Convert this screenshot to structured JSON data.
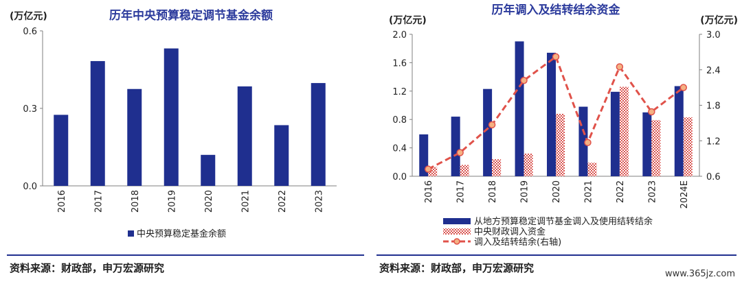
{
  "colors": {
    "navy": "#1F2F8F",
    "title": "#2B3A9C",
    "grid_axis": "#7F7F7F",
    "red_line": "#E0524A",
    "marker_fill": "#F4B183",
    "pattern_red": "#D9534F"
  },
  "left": {
    "title": "历年中央预算稳定调节基金余额",
    "unit": "(万亿元)",
    "legend": "中央预算稳定基金余额",
    "source": "资料来源：财政部，申万宏源研究"
  },
  "right": {
    "title": "历年调入及结转结余资金",
    "unit_left": "(万亿元)",
    "unit_right": "(万亿元)",
    "legend": [
      "从地方预算稳定调节基金调入及使用结转结余",
      "中央财政调入资金",
      "调入及结转结余(右轴)"
    ],
    "source": "资料来源：财政部，申万宏源研究"
  },
  "watermark": "www.365jz.com",
  "chart_data": [
    {
      "type": "bar",
      "title": "历年中央预算稳定调节基金余额",
      "ylabel": "(万亿元)",
      "categories": [
        "2016",
        "2017",
        "2018",
        "2019",
        "2020",
        "2021",
        "2022",
        "2023"
      ],
      "series": [
        {
          "name": "中央预算稳定基金余额",
          "values": [
            0.275,
            0.483,
            0.375,
            0.532,
            0.12,
            0.385,
            0.235,
            0.398
          ]
        }
      ],
      "ylim": [
        0,
        0.6
      ],
      "yticks": [
        "0.0",
        "0.3",
        "0.6"
      ],
      "legend_position": "bottom",
      "grid": false
    },
    {
      "type": "bar",
      "title": "历年调入及结转结余资金",
      "ylabel": "(万亿元)",
      "y2label": "(万亿元)",
      "categories": [
        "2016",
        "2017",
        "2018",
        "2019",
        "2020",
        "2021",
        "2022",
        "2023",
        "2024E"
      ],
      "series": [
        {
          "name": "从地方预算稳定调节基金调入及使用结转结余",
          "kind": "bar",
          "axis": "left",
          "values": [
            0.59,
            0.84,
            1.23,
            1.9,
            1.74,
            0.98,
            1.19,
            0.9,
            1.27
          ]
        },
        {
          "name": "中央财政调入资金",
          "kind": "bar-pattern",
          "axis": "left",
          "values": [
            0.13,
            0.16,
            0.24,
            0.32,
            0.88,
            0.19,
            1.26,
            0.79,
            0.83
          ]
        },
        {
          "name": "调入及结转结余(右轴)",
          "kind": "dashed-line",
          "axis": "right",
          "values": [
            0.72,
            1.0,
            1.47,
            2.22,
            2.62,
            1.17,
            2.45,
            1.69,
            2.1
          ]
        }
      ],
      "ylim": [
        0,
        2.0
      ],
      "yticks": [
        "0.0",
        "0.4",
        "0.8",
        "1.2",
        "1.6",
        "2.0"
      ],
      "y2lim": [
        0.6,
        3.0
      ],
      "y2ticks": [
        "0.6",
        "1.2",
        "1.8",
        "2.4",
        "3.0"
      ],
      "legend_position": "bottom",
      "grid": false
    }
  ]
}
